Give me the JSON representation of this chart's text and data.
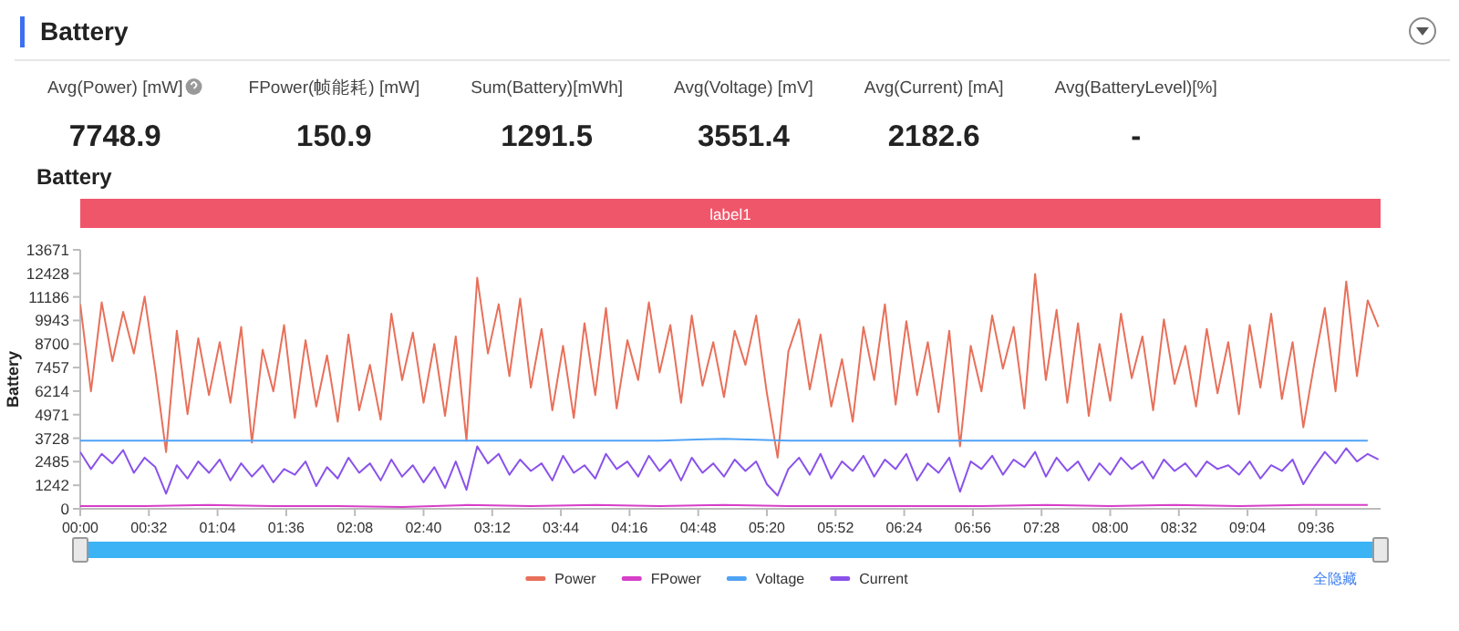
{
  "chart_data": [
    {
      "type": "other",
      "title": "Battery",
      "annotations": [
        "Avg(Power) [mW]",
        "7748.9",
        "FPower(帧能耗) [mW]",
        "150.9",
        "Sum(Battery)[mWh]",
        "1291.5",
        "Avg(Voltage) [mV]",
        "3551.4",
        "Avg(Current) [mA]",
        "2182.6",
        "Avg(BatteryLevel)[%]",
        "-"
      ]
    },
    {
      "type": "line",
      "title": "Battery",
      "ylabel": "Battery",
      "legend": "bottom",
      "x": [
        0,
        5,
        10,
        15,
        20,
        25,
        30,
        35,
        40,
        45,
        50,
        55,
        60,
        65,
        70,
        75,
        80,
        85,
        90,
        95,
        100,
        105,
        110,
        115,
        120,
        125,
        130,
        135,
        140,
        145,
        150,
        155,
        160,
        165,
        170,
        175,
        180,
        185,
        190,
        195,
        200,
        205,
        210,
        215,
        220,
        225,
        230,
        235,
        240,
        245,
        250,
        255,
        260,
        265,
        270,
        275,
        280,
        285,
        290,
        295,
        300,
        305,
        310,
        315,
        320,
        325,
        330,
        335,
        340,
        345,
        350,
        355,
        360,
        365,
        370,
        375,
        380,
        385,
        390,
        395,
        400,
        405,
        410,
        415,
        420,
        425,
        430,
        435,
        440,
        445,
        450,
        455,
        460,
        465,
        470,
        475,
        480,
        485,
        490,
        495,
        500,
        505,
        510,
        515,
        520,
        525,
        530,
        535,
        540,
        545,
        550,
        555,
        560,
        565,
        570,
        575,
        580,
        585,
        590,
        595,
        600,
        605
      ],
      "xlim": [
        0,
        606
      ],
      "xticks": [
        {
          "value": 0,
          "label": "00:00"
        },
        {
          "value": 32,
          "label": "00:32"
        },
        {
          "value": 64,
          "label": "01:04"
        },
        {
          "value": 96,
          "label": "01:36"
        },
        {
          "value": 128,
          "label": "02:08"
        },
        {
          "value": 160,
          "label": "02:40"
        },
        {
          "value": 192,
          "label": "03:12"
        },
        {
          "value": 224,
          "label": "03:44"
        },
        {
          "value": 256,
          "label": "04:16"
        },
        {
          "value": 288,
          "label": "04:48"
        },
        {
          "value": 320,
          "label": "05:20"
        },
        {
          "value": 352,
          "label": "05:52"
        },
        {
          "value": 384,
          "label": "06:24"
        },
        {
          "value": 416,
          "label": "06:56"
        },
        {
          "value": 448,
          "label": "07:28"
        },
        {
          "value": 480,
          "label": "08:00"
        },
        {
          "value": 512,
          "label": "08:32"
        },
        {
          "value": 544,
          "label": "09:04"
        },
        {
          "value": 576,
          "label": "09:36"
        }
      ],
      "ylim": [
        0,
        13671
      ],
      "yticks": [
        0,
        1242,
        2485,
        3728,
        4971,
        6214,
        7457,
        8700,
        9943,
        11186,
        12428,
        13671
      ],
      "annotations": [
        "label1",
        "全隐藏"
      ],
      "series": [
        {
          "name": "Power",
          "color": "#e8705a",
          "values": [
            10800,
            6200,
            10900,
            7800,
            10400,
            8200,
            11200,
            7300,
            3000,
            9400,
            5000,
            9000,
            6000,
            8800,
            5600,
            9600,
            3500,
            8400,
            6200,
            9700,
            4800,
            8900,
            5400,
            8100,
            4600,
            9200,
            5200,
            7600,
            4700,
            10300,
            6800,
            9300,
            5600,
            8700,
            4900,
            9100,
            3600,
            12200,
            8200,
            10800,
            7000,
            11100,
            6400,
            9500,
            5200,
            8600,
            4800,
            9800,
            6000,
            10600,
            5300,
            8900,
            6800,
            10900,
            7200,
            9700,
            5600,
            10200,
            6500,
            8800,
            5900,
            9400,
            7600,
            10200,
            6100,
            2700,
            8300,
            10000,
            6300,
            9200,
            5400,
            7900,
            4600,
            9600,
            6800,
            10800,
            5500,
            9900,
            6000,
            8800,
            5100,
            9400,
            3300,
            8600,
            6200,
            10200,
            7400,
            9600,
            5300,
            12400,
            6800,
            10500,
            5600,
            9800,
            4900,
            8700,
            5700,
            10300,
            6900,
            9100,
            5200,
            10000,
            6600,
            8600,
            5400,
            9500,
            6100,
            8800,
            5000,
            9700,
            6400,
            10300,
            5800,
            8800,
            4300,
            7600,
            10600,
            6200,
            12000,
            7000,
            11000,
            9600
          ]
        },
        {
          "name": "FPower",
          "color": "#d63fc8",
          "x": [
            0,
            30,
            60,
            90,
            120,
            150,
            180,
            210,
            240,
            270,
            300,
            330,
            360,
            390,
            420,
            450,
            480,
            510,
            540,
            570,
            600
          ],
          "values": [
            150,
            150,
            200,
            150,
            150,
            100,
            200,
            150,
            200,
            150,
            200,
            150,
            150,
            150,
            150,
            200,
            150,
            200,
            150,
            200,
            200
          ]
        },
        {
          "name": "Voltage",
          "color": "#4fa3f7",
          "x": [
            0,
            30,
            60,
            90,
            120,
            150,
            180,
            210,
            240,
            270,
            300,
            330,
            360,
            390,
            420,
            450,
            480,
            510,
            540,
            570,
            600
          ],
          "values": [
            3600,
            3600,
            3600,
            3600,
            3600,
            3600,
            3600,
            3600,
            3600,
            3600,
            3700,
            3600,
            3600,
            3600,
            3600,
            3600,
            3600,
            3600,
            3600,
            3600,
            3600
          ]
        },
        {
          "name": "Current",
          "color": "#8a52eb",
          "values": [
            3000,
            2100,
            2900,
            2400,
            3100,
            1900,
            2700,
            2200,
            800,
            2300,
            1600,
            2500,
            1900,
            2600,
            1500,
            2400,
            1700,
            2300,
            1400,
            2100,
            1800,
            2500,
            1200,
            2200,
            1600,
            2700,
            1900,
            2400,
            1500,
            2600,
            1700,
            2300,
            1400,
            2200,
            1100,
            2500,
            1000,
            3300,
            2400,
            2900,
            1800,
            2600,
            2000,
            2400,
            1500,
            2800,
            1900,
            2300,
            1600,
            2900,
            2100,
            2500,
            1700,
            2800,
            2000,
            2600,
            1500,
            2700,
            1900,
            2400,
            1700,
            2600,
            2000,
            2500,
            1300,
            700,
            2100,
            2700,
            1800,
            2900,
            1600,
            2500,
            2000,
            2800,
            1700,
            2600,
            2100,
            2900,
            1500,
            2400,
            1900,
            2700,
            900,
            2500,
            2100,
            2800,
            1800,
            2600,
            2200,
            3000,
            1700,
            2700,
            2000,
            2500,
            1500,
            2400,
            1800,
            2700,
            2100,
            2500,
            1600,
            2600,
            2000,
            2400,
            1700,
            2500,
            2100,
            2300,
            1800,
            2500,
            1600,
            2300,
            2000,
            2600,
            1300,
            2200,
            3000,
            2400,
            3200,
            2500,
            2900,
            2600
          ]
        }
      ]
    }
  ]
}
